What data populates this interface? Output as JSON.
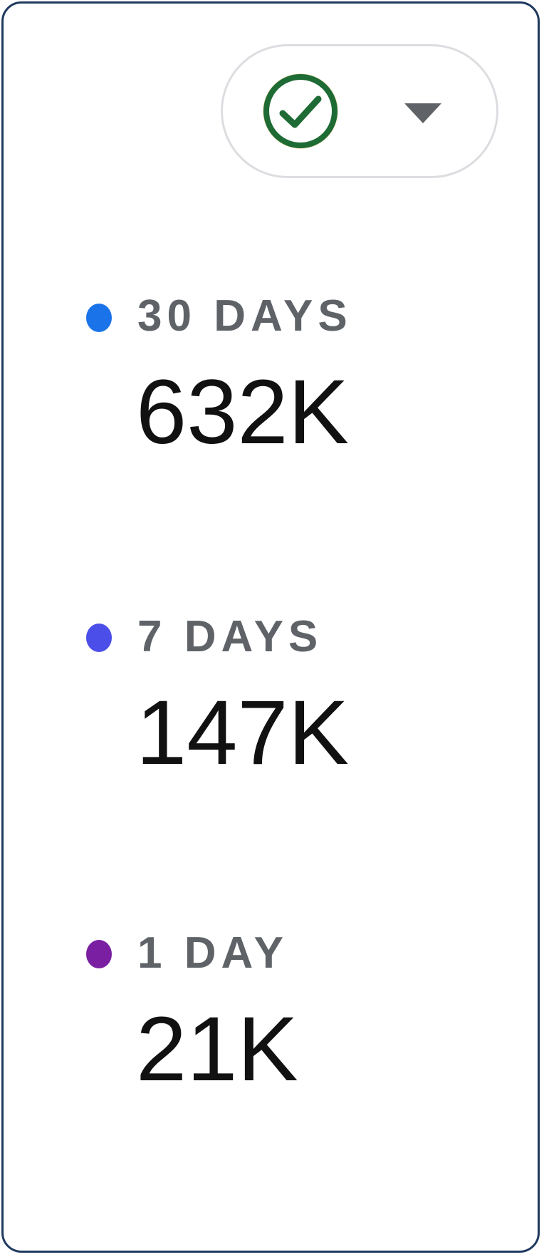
{
  "status": {
    "icon": "check-circle-icon",
    "icon_color": "#1f7a3a",
    "icon_ring_color": "#1e6b35",
    "icon_ring_halo": "#c8a73a",
    "dropdown_icon": "caret-down-icon"
  },
  "metrics": [
    {
      "label": "30 DAYS",
      "value": "632K",
      "dot_color": "#1a73e8"
    },
    {
      "label": "7 DAYS",
      "value": "147K",
      "dot_color": "#4b4ee8"
    },
    {
      "label": "1 DAY",
      "value": "21K",
      "dot_color": "#7b1fa2"
    }
  ]
}
